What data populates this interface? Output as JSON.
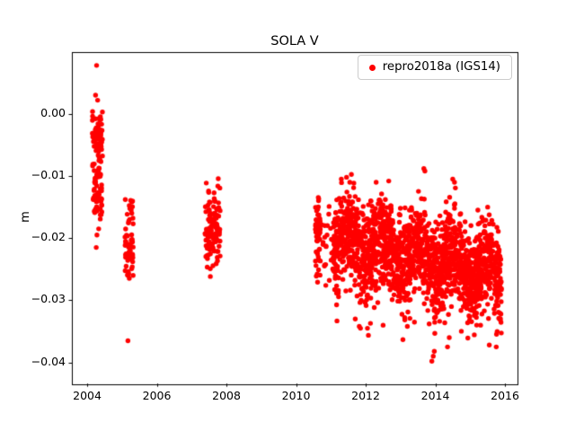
{
  "chart_data": {
    "type": "scatter",
    "title": "SOLA V",
    "xlabel": "",
    "ylabel": "m",
    "grid": false,
    "legend": {
      "location": "upper right",
      "entries": [
        {
          "label": "repro2018a (IGS14)",
          "color": "#ff0000",
          "marker": "circle"
        }
      ]
    },
    "xlim": [
      2003.56,
      2016.36
    ],
    "ylim": [
      -0.0434,
      0.01
    ],
    "xticks": [
      {
        "v": 2004,
        "label": "2004"
      },
      {
        "v": 2006,
        "label": "2006"
      },
      {
        "v": 2008,
        "label": "2008"
      },
      {
        "v": 2010,
        "label": "2010"
      },
      {
        "v": 2012,
        "label": "2012"
      },
      {
        "v": 2014,
        "label": "2014"
      },
      {
        "v": 2016,
        "label": "2016"
      }
    ],
    "yticks": [
      {
        "v": -0.04,
        "label": "−0.04"
      },
      {
        "v": -0.03,
        "label": "−0.03"
      },
      {
        "v": -0.02,
        "label": "−0.02"
      },
      {
        "v": -0.01,
        "label": "−0.01"
      },
      {
        "v": 0.0,
        "label": "0.00"
      }
    ],
    "marker": {
      "shape": "circle",
      "color": "#ff0000",
      "radius_px": 2.7
    },
    "seed": 20180101,
    "clusters": [
      {
        "x0": 2004.14,
        "x1": 2004.44,
        "n": 78,
        "c0": -0.0035,
        "c1": -0.0035,
        "amp": 0,
        "phase": 0,
        "sd": 0.0025,
        "ymin": -0.0085,
        "ymax": 0.0012
      },
      {
        "x0": 2004.16,
        "x1": 2004.42,
        "n": 62,
        "c0": -0.0125,
        "c1": -0.0125,
        "amp": 0,
        "phase": 0,
        "sd": 0.003,
        "ymin": -0.017,
        "ymax": -0.008
      },
      {
        "x0": 2005.08,
        "x1": 2005.32,
        "n": 62,
        "c0": -0.021,
        "c1": -0.021,
        "amp": 0,
        "phase": 0,
        "sd": 0.004,
        "ymin": -0.031,
        "ymax": -0.0135
      },
      {
        "x0": 2007.38,
        "x1": 2007.82,
        "n": 112,
        "c0": -0.0188,
        "c1": -0.0188,
        "amp": 0,
        "phase": 0,
        "sd": 0.0035,
        "ymin": -0.0272,
        "ymax": -0.0098
      },
      {
        "x0": 2010.55,
        "x1": 2010.7,
        "n": 55,
        "c0": -0.019,
        "c1": -0.019,
        "amp": 0,
        "phase": 0,
        "sd": 0.0045,
        "ymin": -0.029,
        "ymax": -0.011
      },
      {
        "x0": 2010.72,
        "x1": 2011.05,
        "n": 20,
        "c0": -0.021,
        "c1": -0.021,
        "amp": 0,
        "phase": 0,
        "sd": 0.004,
        "ymin": -0.03,
        "ymax": -0.012
      },
      {
        "x0": 2011.05,
        "x1": 2015.9,
        "n": 1900,
        "c0": -0.02,
        "c1": -0.0265,
        "amp": 0.0022,
        "phase": 0.25,
        "sd": 0.0038,
        "ymin": -0.0395,
        "ymax": -0.0095
      }
    ],
    "outlier_points": [
      [
        2004.27,
        0.0078
      ],
      [
        2004.24,
        0.003
      ],
      [
        2004.3,
        0.0022
      ],
      [
        2004.28,
        -0.0195
      ],
      [
        2004.26,
        -0.0215
      ],
      [
        2004.33,
        -0.0185
      ],
      [
        2005.17,
        -0.0365
      ],
      [
        2011.3,
        -0.0105
      ],
      [
        2011.45,
        -0.0102
      ],
      [
        2011.7,
        -0.033
      ],
      [
        2011.85,
        -0.0345
      ],
      [
        2012.05,
        -0.0345
      ],
      [
        2012.3,
        -0.011
      ],
      [
        2012.5,
        -0.034
      ],
      [
        2013.4,
        -0.0335
      ],
      [
        2013.67,
        -0.0088
      ],
      [
        2013.7,
        -0.0092
      ],
      [
        2013.9,
        -0.0398
      ],
      [
        2013.94,
        -0.039
      ],
      [
        2013.97,
        -0.0382
      ],
      [
        2014.35,
        -0.0375
      ],
      [
        2014.4,
        -0.036
      ],
      [
        2014.5,
        -0.0105
      ],
      [
        2014.55,
        -0.011
      ],
      [
        2015.3,
        -0.034
      ],
      [
        2015.55,
        -0.0372
      ],
      [
        2015.75,
        -0.0375
      ]
    ]
  },
  "figure": {
    "background": "#ffffff",
    "spine_color": "#000000"
  }
}
